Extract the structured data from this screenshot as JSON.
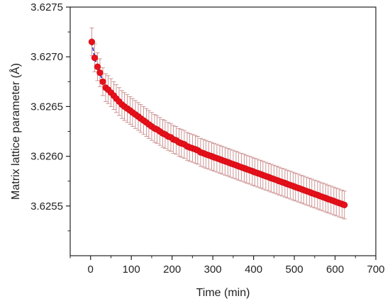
{
  "chart_data": {
    "type": "scatter",
    "xlabel": "Time (min)",
    "ylabel": "Matrix lattice parameter (Å)",
    "xlim": [
      -50,
      700
    ],
    "ylim": [
      3.625,
      3.6275
    ],
    "xticks": [
      0,
      100,
      200,
      300,
      400,
      500,
      600,
      700
    ],
    "yticks": [
      3.6255,
      3.626,
      3.6265,
      3.627,
      3.6275
    ],
    "xtick_labels": [
      "0",
      "100",
      "200",
      "300",
      "400",
      "500",
      "600",
      "700"
    ],
    "ytick_labels": [
      "3.6255",
      "3.6260",
      "3.6265",
      "3.6270",
      "3.6275"
    ],
    "grid": false,
    "colors": {
      "marker": "#e8101a",
      "errorbar": "#c98a8a",
      "fitline": "#1f1fb4",
      "axis": "#222222"
    },
    "series": [
      {
        "marker": "filled-circle",
        "error_bars": true,
        "fit_line": "dashed",
        "x": [
          3,
          10,
          17,
          23,
          30,
          37,
          43,
          50,
          57,
          63,
          70,
          77,
          83,
          90,
          97,
          103,
          110,
          117,
          123,
          130,
          137,
          143,
          150,
          157,
          163,
          170,
          177,
          183,
          190,
          197,
          203,
          210,
          217,
          223,
          230,
          237,
          243,
          250,
          257,
          263,
          270,
          277,
          283,
          290,
          297,
          303,
          310,
          317,
          323,
          330,
          337,
          343,
          350,
          357,
          363,
          370,
          377,
          383,
          390,
          397,
          403,
          410,
          417,
          423,
          430,
          437,
          443,
          450,
          457,
          463,
          470,
          477,
          483,
          490,
          497,
          503,
          510,
          517,
          523,
          530,
          537,
          543,
          550,
          557,
          563,
          570,
          577,
          583,
          590,
          597,
          603,
          610,
          617,
          623
        ],
        "y": [
          3.62715,
          3.62699,
          3.6269,
          3.62684,
          3.62675,
          3.62669,
          3.62667,
          3.62664,
          3.62661,
          3.62658,
          3.62655,
          3.62652,
          3.6265,
          3.62648,
          3.62646,
          3.62644,
          3.62642,
          3.6264,
          3.62638,
          3.62636,
          3.62634,
          3.62632,
          3.6263,
          3.62628,
          3.62627,
          3.62625,
          3.62623,
          3.62622,
          3.6262,
          3.62619,
          3.62617,
          3.62616,
          3.62614,
          3.62613,
          3.62612,
          3.6261,
          3.62609,
          3.62608,
          3.62607,
          3.62606,
          3.62604,
          3.62603,
          3.62602,
          3.62601,
          3.626,
          3.62599,
          3.62598,
          3.62597,
          3.62596,
          3.62595,
          3.62594,
          3.62593,
          3.62592,
          3.62591,
          3.6259,
          3.62589,
          3.62588,
          3.62587,
          3.62586,
          3.62585,
          3.62584,
          3.62583,
          3.62582,
          3.62581,
          3.6258,
          3.62579,
          3.62578,
          3.62577,
          3.62576,
          3.62575,
          3.62574,
          3.62573,
          3.62572,
          3.62571,
          3.6257,
          3.62569,
          3.62568,
          3.62567,
          3.62566,
          3.62565,
          3.62564,
          3.62563,
          3.62562,
          3.62561,
          3.6256,
          3.62559,
          3.62558,
          3.62557,
          3.62556,
          3.62555,
          3.62554,
          3.62553,
          3.62552,
          3.62551
        ],
        "yerr": [
          0.00014,
          0.00014,
          0.00014,
          0.00014,
          0.00014,
          0.00014,
          0.00014,
          0.00014,
          0.00014,
          0.00014,
          0.00014,
          0.00014,
          0.00014,
          0.00014,
          0.00014,
          0.00014,
          0.00014,
          0.00014,
          0.00014,
          0.00014,
          0.00014,
          0.00014,
          0.00014,
          0.00014,
          0.00014,
          0.00014,
          0.00014,
          0.00014,
          0.00014,
          0.00014,
          0.00014,
          0.00014,
          0.00014,
          0.00014,
          0.00014,
          0.00014,
          0.00014,
          0.00014,
          0.00014,
          0.00014,
          0.00014,
          0.00014,
          0.00014,
          0.00014,
          0.00014,
          0.00014,
          0.00014,
          0.00014,
          0.00014,
          0.00014,
          0.00014,
          0.00014,
          0.00014,
          0.00014,
          0.00014,
          0.00014,
          0.00014,
          0.00014,
          0.00014,
          0.00014,
          0.00014,
          0.00014,
          0.00014,
          0.00014,
          0.00014,
          0.00014,
          0.00014,
          0.00014,
          0.00014,
          0.00014,
          0.00014,
          0.00014,
          0.00014,
          0.00014,
          0.00014,
          0.00014,
          0.00014,
          0.00014,
          0.00014,
          0.00014,
          0.00014,
          0.00014,
          0.00014,
          0.00014,
          0.00014,
          0.00014,
          0.00014,
          0.00014,
          0.00014,
          0.00014,
          0.00014,
          0.00014,
          0.00014,
          0.00014
        ]
      }
    ]
  }
}
